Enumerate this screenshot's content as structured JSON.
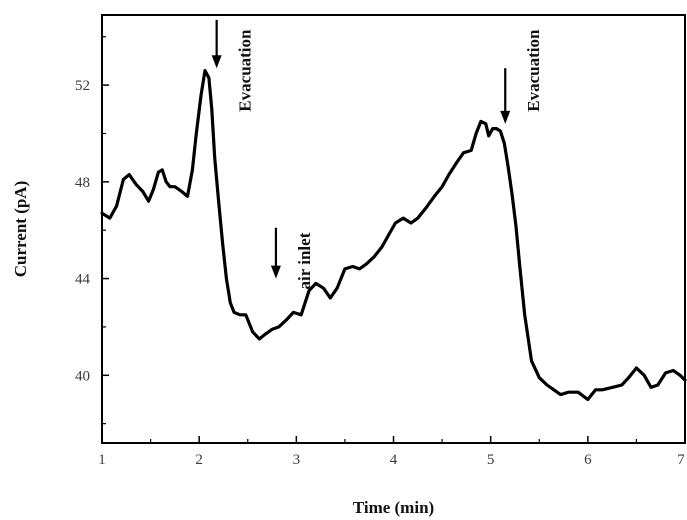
{
  "chart_data": {
    "type": "line",
    "xlabel": "Time (min)",
    "ylabel": "Current (pA)",
    "xlim": [
      1,
      7
    ],
    "ylim": [
      37.2,
      54.9
    ],
    "xticks": [
      1,
      2,
      3,
      4,
      5,
      6,
      7
    ],
    "yticks": [
      40,
      44,
      48,
      52
    ],
    "xtick_labels": [
      "1",
      "2",
      "3",
      "4",
      "5",
      "6",
      "7"
    ],
    "ytick_labels": [
      "40",
      "44",
      "48",
      "52"
    ],
    "grid": false,
    "series": [
      {
        "x": [
          1.0,
          1.08,
          1.15,
          1.22,
          1.28,
          1.35,
          1.42,
          1.48,
          1.53,
          1.58,
          1.62,
          1.66,
          1.7,
          1.75,
          1.82,
          1.88,
          1.93,
          1.97,
          2.02,
          2.06,
          2.1,
          2.13,
          2.16,
          2.2,
          2.24,
          2.28,
          2.32,
          2.36,
          2.42,
          2.48,
          2.55,
          2.62,
          2.68,
          2.75,
          2.82,
          2.9,
          2.97,
          3.05,
          3.13,
          3.2,
          3.28,
          3.35,
          3.42,
          3.5,
          3.58,
          3.65,
          3.72,
          3.8,
          3.88,
          3.95,
          4.02,
          4.1,
          4.18,
          4.25,
          4.33,
          4.42,
          4.5,
          4.57,
          4.65,
          4.72,
          4.8,
          4.85,
          4.9,
          4.95,
          4.98,
          5.02,
          5.06,
          5.1,
          5.14,
          5.18,
          5.22,
          5.26,
          5.3,
          5.35,
          5.42,
          5.5,
          5.58,
          5.65,
          5.72,
          5.8,
          5.9,
          6.0,
          6.08,
          6.15,
          6.25,
          6.35,
          6.42,
          6.5,
          6.58,
          6.65,
          6.72,
          6.8,
          6.88,
          6.95,
          7.0
        ],
        "y": [
          46.7,
          46.5,
          47.0,
          48.1,
          48.3,
          47.9,
          47.6,
          47.2,
          47.7,
          48.4,
          48.5,
          48.0,
          47.8,
          47.8,
          47.6,
          47.4,
          48.5,
          50.0,
          51.6,
          52.6,
          52.3,
          51.0,
          49.0,
          47.2,
          45.5,
          44.0,
          43.0,
          42.6,
          42.5,
          42.5,
          41.8,
          41.5,
          41.7,
          41.9,
          42.0,
          42.3,
          42.6,
          42.5,
          43.5,
          43.8,
          43.6,
          43.2,
          43.6,
          44.4,
          44.5,
          44.4,
          44.6,
          44.9,
          45.3,
          45.8,
          46.3,
          46.5,
          46.3,
          46.5,
          46.9,
          47.4,
          47.8,
          48.3,
          48.8,
          49.2,
          49.3,
          50.0,
          50.5,
          50.4,
          49.9,
          50.2,
          50.2,
          50.1,
          49.6,
          48.6,
          47.5,
          46.2,
          44.5,
          42.5,
          40.6,
          39.9,
          39.6,
          39.4,
          39.2,
          39.3,
          39.3,
          39.0,
          39.4,
          39.4,
          39.5,
          39.6,
          39.9,
          40.3,
          40.0,
          39.5,
          39.6,
          40.1,
          40.2,
          40.0,
          39.8
        ]
      }
    ],
    "annotations": [
      {
        "text": "Evacuation",
        "x": 2.18,
        "y": 54.3
      },
      {
        "text": "air inlet",
        "x": 2.79,
        "y": 45.9
      },
      {
        "text": "Evacuation",
        "x": 5.15,
        "y": 54.3
      }
    ],
    "arrows": [
      {
        "x": 2.18,
        "y_from": 54.7,
        "y_to": 52.7
      },
      {
        "x": 2.79,
        "y_from": 46.1,
        "y_to": 44.0
      },
      {
        "x": 5.15,
        "y_from": 52.7,
        "y_to": 50.4
      }
    ]
  }
}
